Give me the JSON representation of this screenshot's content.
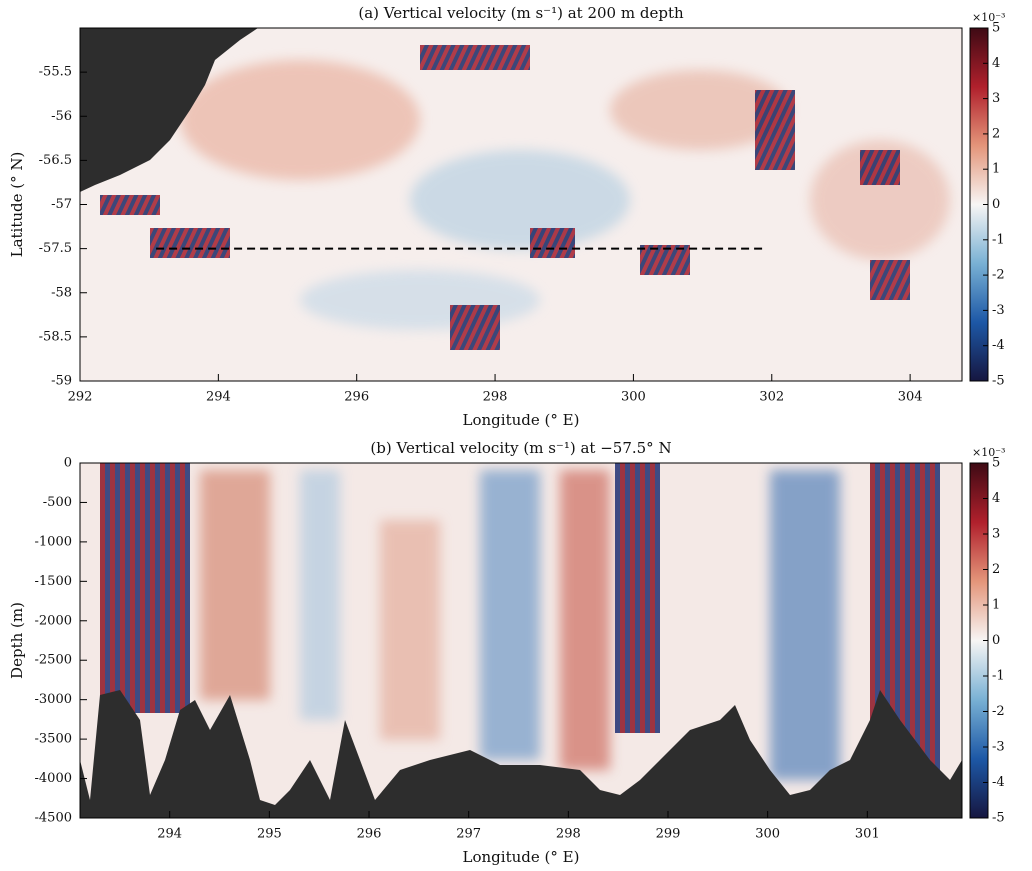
{
  "chart_data": [
    {
      "type": "heatmap",
      "title": "(a) Vertical velocity (m s⁻¹) at 200 m depth",
      "xlabel": "Longitude (° E)",
      "ylabel": "Latitude (° N)",
      "xlim": [
        292,
        304.75
      ],
      "ylim": [
        -59,
        -55
      ],
      "xticks": [
        292,
        294,
        296,
        298,
        300,
        302,
        304
      ],
      "yticks": [
        -55.5,
        -56,
        -56.5,
        -57,
        -57.5,
        -58,
        -58.5,
        -59
      ],
      "section": {
        "lat": -57.5,
        "lon": [
          293.1,
          301.9
        ]
      },
      "colorbar": {
        "lim": [
          -5,
          5
        ],
        "ticks": [
          5,
          4,
          3,
          2,
          1,
          0,
          -1,
          -2,
          -3,
          -4,
          -5
        ],
        "label": "×10⁻³"
      },
      "colormap": [
        "#161640",
        "#1d58a6",
        "#79b1d4",
        "#f7f5f4",
        "#e4957a",
        "#b0202c",
        "#3e0a14"
      ]
    },
    {
      "type": "heatmap",
      "title": "(b) Vertical velocity (m s⁻¹) at −57.5° N",
      "xlabel": "Longitude (° E)",
      "ylabel": "Depth (m)",
      "xlim": [
        293.1,
        301.95
      ],
      "ylim": [
        -4500,
        0
      ],
      "xticks": [
        294,
        295,
        296,
        297,
        298,
        299,
        300,
        301
      ],
      "yticks": [
        0,
        -500,
        -1000,
        -1500,
        -2000,
        -2500,
        -3000,
        -3500,
        -4000,
        -4500
      ],
      "colorbar": {
        "lim": [
          -5,
          5
        ],
        "ticks": [
          5,
          4,
          3,
          2,
          1,
          0,
          -1,
          -2,
          -3,
          -4,
          -5
        ],
        "label": "×10⁻³"
      },
      "colormap": [
        "#161640",
        "#1d58a6",
        "#79b1d4",
        "#f7f5f4",
        "#e4957a",
        "#b0202c",
        "#3e0a14"
      ]
    }
  ]
}
